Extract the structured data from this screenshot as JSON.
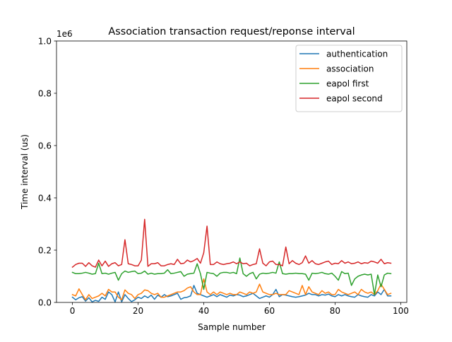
{
  "chart_data": {
    "type": "line",
    "title": "Association transaction request/reponse interval",
    "xlabel": "Sample number",
    "ylabel": "Time interval (us)",
    "y_offset_text": "1e6",
    "xlim": [
      -4.85,
      101.85
    ],
    "ylim": [
      0,
      1.0
    ],
    "x_ticks": [
      0,
      20,
      40,
      60,
      80,
      100
    ],
    "x_tick_labels": [
      "0",
      "20",
      "40",
      "60",
      "80",
      "100"
    ],
    "y_ticks": [
      0.0,
      0.2,
      0.4,
      0.6,
      0.8,
      1.0
    ],
    "y_tick_labels": [
      "0.0",
      "0.2",
      "0.4",
      "0.6",
      "0.8",
      "1.0"
    ],
    "y_scale_note": "values in units of 1e6 us",
    "grid": false,
    "legend_position": "top-right",
    "series": [
      {
        "name": "authentication",
        "color": "#1f77b4",
        "values": [
          0.02,
          0.01,
          0.018,
          0.022,
          0.005,
          0.018,
          0.002,
          0.008,
          0.004,
          0.02,
          0.012,
          0.04,
          0.03,
          0.002,
          0.04,
          0.002,
          0.03,
          0.015,
          0.003,
          0.01,
          0.02,
          0.015,
          0.025,
          0.018,
          0.028,
          0.012,
          0.028,
          0.02,
          0.03,
          0.022,
          0.025,
          0.03,
          0.035,
          0.012,
          0.018,
          0.02,
          0.025,
          0.065,
          0.035,
          0.03,
          0.025,
          0.02,
          0.025,
          0.03,
          0.022,
          0.03,
          0.025,
          0.02,
          0.028,
          0.025,
          0.03,
          0.028,
          0.022,
          0.025,
          0.03,
          0.035,
          0.025,
          0.015,
          0.02,
          0.025,
          0.02,
          0.03,
          0.05,
          0.022,
          0.03,
          0.028,
          0.025,
          0.022,
          0.02,
          0.022,
          0.025,
          0.028,
          0.035,
          0.03,
          0.03,
          0.025,
          0.03,
          0.028,
          0.032,
          0.025,
          0.022,
          0.03,
          0.025,
          0.03,
          0.025,
          0.022,
          0.02,
          0.03,
          0.025,
          0.022,
          0.02,
          0.03,
          0.025,
          0.04,
          0.03,
          0.05,
          0.025,
          0.025
        ]
      },
      {
        "name": "association",
        "color": "#ff7f0e",
        "values": [
          0.03,
          0.025,
          0.052,
          0.03,
          0.01,
          0.03,
          0.015,
          0.02,
          0.025,
          0.035,
          0.025,
          0.05,
          0.04,
          0.04,
          0.02,
          0.01,
          0.048,
          0.035,
          0.03,
          0.015,
          0.03,
          0.035,
          0.048,
          0.045,
          0.035,
          0.03,
          0.035,
          0.02,
          0.02,
          0.025,
          0.03,
          0.035,
          0.04,
          0.04,
          0.045,
          0.055,
          0.06,
          0.04,
          0.03,
          0.03,
          0.09,
          0.04,
          0.03,
          0.04,
          0.03,
          0.04,
          0.035,
          0.03,
          0.035,
          0.03,
          0.03,
          0.04,
          0.035,
          0.03,
          0.04,
          0.035,
          0.04,
          0.07,
          0.04,
          0.035,
          0.03,
          0.03,
          0.035,
          0.03,
          0.03,
          0.03,
          0.045,
          0.04,
          0.035,
          0.03,
          0.065,
          0.03,
          0.06,
          0.04,
          0.035,
          0.03,
          0.045,
          0.035,
          0.04,
          0.03,
          0.03,
          0.05,
          0.04,
          0.035,
          0.03,
          0.035,
          0.04,
          0.03,
          0.05,
          0.04,
          0.035,
          0.04,
          0.03,
          0.045,
          0.07,
          0.05,
          0.03,
          0.035
        ]
      },
      {
        "name": "eapol first",
        "color": "#2ca02c",
        "values": [
          0.115,
          0.11,
          0.11,
          0.112,
          0.115,
          0.112,
          0.108,
          0.11,
          0.15,
          0.11,
          0.112,
          0.108,
          0.112,
          0.115,
          0.085,
          0.11,
          0.12,
          0.115,
          0.118,
          0.12,
          0.11,
          0.112,
          0.12,
          0.108,
          0.112,
          0.108,
          0.11,
          0.11,
          0.112,
          0.125,
          0.11,
          0.112,
          0.115,
          0.118,
          0.1,
          0.108,
          0.11,
          0.112,
          0.148,
          0.11,
          0.05,
          0.115,
          0.112,
          0.11,
          0.1,
          0.112,
          0.115,
          0.115,
          0.112,
          0.115,
          0.11,
          0.17,
          0.11,
          0.1,
          0.11,
          0.115,
          0.09,
          0.108,
          0.112,
          0.11,
          0.112,
          0.115,
          0.112,
          0.155,
          0.11,
          0.108,
          0.11,
          0.11,
          0.112,
          0.11,
          0.11,
          0.108,
          0.085,
          0.112,
          0.11,
          0.112,
          0.115,
          0.11,
          0.108,
          0.112,
          0.1,
          0.085,
          0.118,
          0.11,
          0.112,
          0.065,
          0.09,
          0.1,
          0.105,
          0.108,
          0.105,
          0.108,
          0.03,
          0.105,
          0.06,
          0.105,
          0.112,
          0.11
        ]
      },
      {
        "name": "eapol second",
        "color": "#d62728",
        "values": [
          0.135,
          0.145,
          0.15,
          0.15,
          0.138,
          0.152,
          0.14,
          0.135,
          0.162,
          0.14,
          0.158,
          0.138,
          0.148,
          0.152,
          0.14,
          0.145,
          0.24,
          0.148,
          0.145,
          0.14,
          0.14,
          0.162,
          0.318,
          0.138,
          0.148,
          0.148,
          0.152,
          0.14,
          0.14,
          0.145,
          0.148,
          0.145,
          0.165,
          0.148,
          0.15,
          0.162,
          0.155,
          0.16,
          0.168,
          0.15,
          0.19,
          0.292,
          0.145,
          0.145,
          0.155,
          0.148,
          0.145,
          0.148,
          0.15,
          0.155,
          0.148,
          0.155,
          0.148,
          0.15,
          0.14,
          0.145,
          0.148,
          0.205,
          0.15,
          0.14,
          0.155,
          0.158,
          0.145,
          0.145,
          0.14,
          0.212,
          0.148,
          0.16,
          0.15,
          0.145,
          0.152,
          0.178,
          0.15,
          0.16,
          0.148,
          0.145,
          0.15,
          0.155,
          0.158,
          0.145,
          0.15,
          0.148,
          0.16,
          0.15,
          0.155,
          0.148,
          0.15,
          0.155,
          0.148,
          0.152,
          0.15,
          0.158,
          0.155,
          0.15,
          0.165,
          0.148,
          0.152,
          0.15
        ]
      }
    ]
  }
}
